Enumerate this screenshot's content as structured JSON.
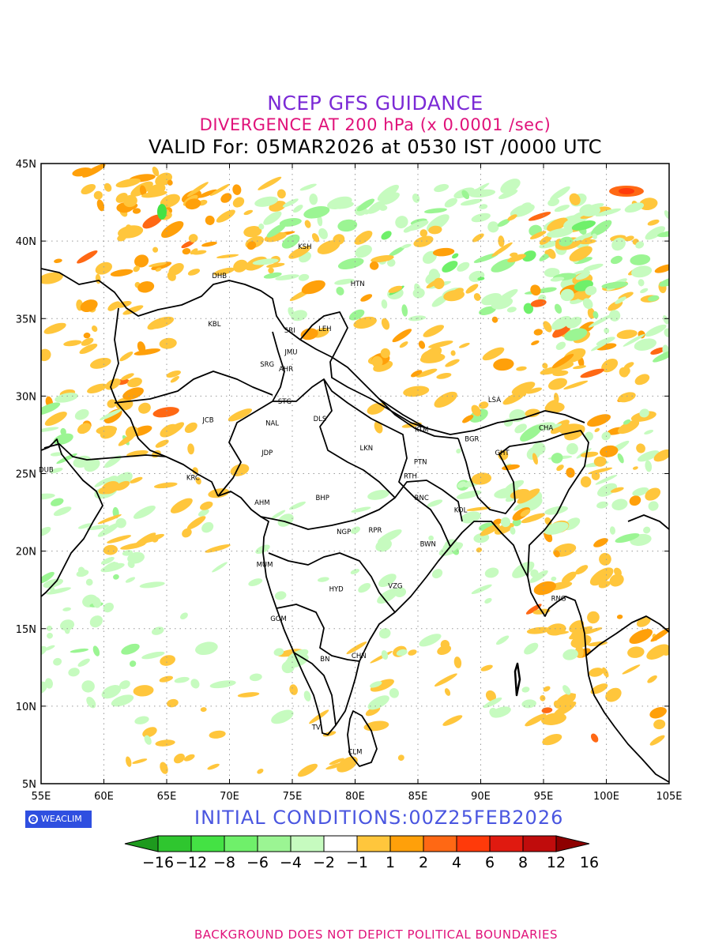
{
  "titles": {
    "line1": "NCEP GFS GUIDANCE",
    "line2": "DIVERGENCE AT 200 hPa (x 0.0001 /sec)",
    "line3": "VALID For: 05MAR2026 at 0530 IST /0000 UTC"
  },
  "map": {
    "lon_range": [
      55,
      105
    ],
    "lat_range": [
      5,
      45
    ],
    "lon_labels": [
      "55E",
      "60E",
      "65E",
      "70E",
      "75E",
      "80E",
      "85E",
      "90E",
      "95E",
      "100E",
      "105E"
    ],
    "lat_labels": [
      "45N",
      "40N",
      "35N",
      "30N",
      "25N",
      "20N",
      "15N",
      "10N",
      "5N"
    ],
    "cities": [
      {
        "name": "DHB",
        "lon": 69.2,
        "lat": 37.6
      },
      {
        "name": "KSH",
        "lon": 76.0,
        "lat": 39.5
      },
      {
        "name": "HTN",
        "lon": 80.2,
        "lat": 37.1
      },
      {
        "name": "KBL",
        "lon": 68.8,
        "lat": 34.5
      },
      {
        "name": "SRI",
        "lon": 74.8,
        "lat": 34.1
      },
      {
        "name": "LEH",
        "lon": 77.6,
        "lat": 34.2
      },
      {
        "name": "JMU",
        "lon": 74.9,
        "lat": 32.7
      },
      {
        "name": "SRG",
        "lon": 73.0,
        "lat": 31.9
      },
      {
        "name": "AHR",
        "lon": 74.5,
        "lat": 31.6
      },
      {
        "name": "STG",
        "lon": 74.4,
        "lat": 29.5
      },
      {
        "name": "JCB",
        "lon": 68.3,
        "lat": 28.3
      },
      {
        "name": "NAL",
        "lon": 73.4,
        "lat": 28.1
      },
      {
        "name": "DLS",
        "lon": 77.2,
        "lat": 28.4
      },
      {
        "name": "LSA",
        "lon": 91.1,
        "lat": 29.6
      },
      {
        "name": "KTM",
        "lon": 85.3,
        "lat": 27.7
      },
      {
        "name": "BGR",
        "lon": 89.3,
        "lat": 27.1
      },
      {
        "name": "CHA",
        "lon": 95.2,
        "lat": 27.8
      },
      {
        "name": "JDP",
        "lon": 73.0,
        "lat": 26.2
      },
      {
        "name": "LKN",
        "lon": 80.9,
        "lat": 26.5
      },
      {
        "name": "GHT",
        "lon": 91.7,
        "lat": 26.2
      },
      {
        "name": "PTN",
        "lon": 85.2,
        "lat": 25.6
      },
      {
        "name": "DUB",
        "lon": 55.4,
        "lat": 25.1
      },
      {
        "name": "KRC",
        "lon": 67.1,
        "lat": 24.6
      },
      {
        "name": "RTH",
        "lon": 84.4,
        "lat": 24.7
      },
      {
        "name": "BHP",
        "lon": 77.4,
        "lat": 23.3
      },
      {
        "name": "AHM",
        "lon": 72.6,
        "lat": 23.0
      },
      {
        "name": "RNC",
        "lon": 85.3,
        "lat": 23.3
      },
      {
        "name": "KOL",
        "lon": 88.4,
        "lat": 22.5
      },
      {
        "name": "NGP",
        "lon": 79.1,
        "lat": 21.1
      },
      {
        "name": "RPR",
        "lon": 81.6,
        "lat": 21.2
      },
      {
        "name": "BWN",
        "lon": 85.8,
        "lat": 20.3
      },
      {
        "name": "MUM",
        "lon": 72.8,
        "lat": 19.0
      },
      {
        "name": "HYD",
        "lon": 78.5,
        "lat": 17.4
      },
      {
        "name": "VZG",
        "lon": 83.2,
        "lat": 17.6
      },
      {
        "name": "RNG",
        "lon": 96.2,
        "lat": 16.8
      },
      {
        "name": "GOM",
        "lon": 73.9,
        "lat": 15.5
      },
      {
        "name": "CHN",
        "lon": 80.3,
        "lat": 13.1
      },
      {
        "name": "BN",
        "lon": 77.6,
        "lat": 12.9
      },
      {
        "name": "TV",
        "lon": 76.9,
        "lat": 8.5
      },
      {
        "name": "CLM",
        "lon": 80.0,
        "lat": 6.9
      }
    ]
  },
  "colors": {
    "map_border": "#000000",
    "grid": "#9a9a9a",
    "coast": "#000000"
  },
  "initial_conditions": "INITIAL  CONDITIONS:00Z25FEB2026",
  "logo_text": "WEACLIM",
  "legend": {
    "colors": [
      "#1e9a1e",
      "#2fc62f",
      "#44e244",
      "#6ff06a",
      "#9bf593",
      "#c6fbbf",
      "#ffffff",
      "#ffc63c",
      "#ffa00a",
      "#ff6814",
      "#ff3a0a",
      "#e01a10",
      "#c00c0c",
      "#8e0000"
    ],
    "labels": [
      "-16",
      "-12",
      "-8",
      "-6",
      "-4",
      "-2",
      "-1",
      "1",
      "2",
      "4",
      "6",
      "8",
      "12",
      "16"
    ]
  },
  "footer": "BACKGROUND DOES NOT DEPICT POLITICAL BOUNDARIES"
}
